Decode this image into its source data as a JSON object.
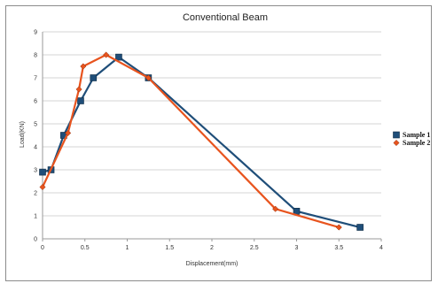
{
  "chart_data": {
    "type": "line",
    "title": "Conventional Beam",
    "xlabel": "Displacement(mm)",
    "ylabel": "Load(KN)",
    "xlim": [
      0,
      4
    ],
    "ylim": [
      0,
      9
    ],
    "x_ticks": [
      "0",
      "0.5",
      "1",
      "1.5",
      "2",
      "2.5",
      "3",
      "3.5",
      "4"
    ],
    "y_ticks": [
      "0",
      "1",
      "2",
      "3",
      "4",
      "5",
      "6",
      "7",
      "8",
      "9"
    ],
    "grid": "horizontal",
    "legend_position": "right",
    "series": [
      {
        "name": "Sample 1",
        "color": "#1f4e79",
        "marker": "square",
        "x": [
          0,
          0.1,
          0.25,
          0.45,
          0.6,
          0.9,
          1.25,
          3.0,
          3.75
        ],
        "y": [
          2.9,
          3.0,
          4.5,
          6.0,
          7.0,
          7.9,
          7.0,
          1.2,
          0.5
        ]
      },
      {
        "name": "Sample 2",
        "color": "#e8541e",
        "marker": "diamond",
        "x": [
          0,
          0.3,
          0.43,
          0.48,
          0.75,
          1.25,
          2.75,
          3.5
        ],
        "y": [
          2.25,
          4.6,
          6.5,
          7.5,
          8.0,
          7.0,
          1.3,
          0.5
        ]
      }
    ]
  }
}
